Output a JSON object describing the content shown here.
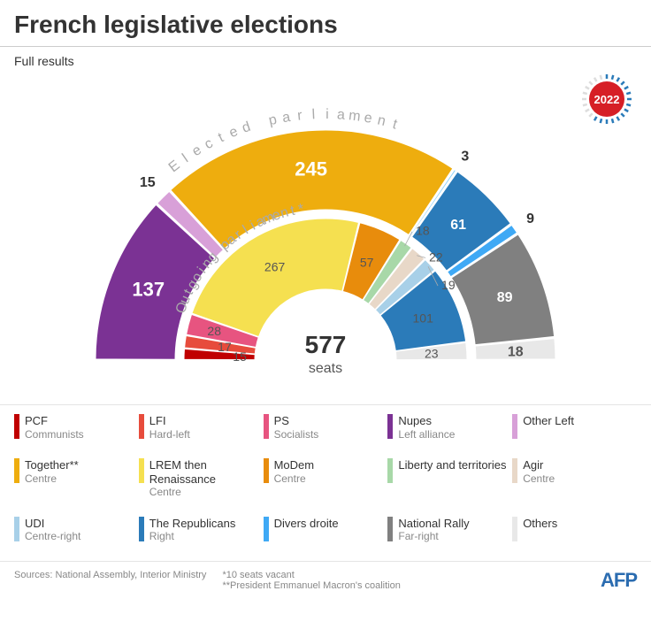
{
  "title": "French legislative elections",
  "subtitle": "Full results",
  "year_badge": {
    "year": "2022",
    "circle_color": "#d61f26",
    "tick_color": "#2b7bb9",
    "text_color": "#ffffff"
  },
  "chart": {
    "center_value": "577",
    "center_unit": "seats",
    "outer_title": "Elected parliament",
    "inner_title": "Outgoing parliament*",
    "outer_radius_outer": 260,
    "outer_radius_inner": 170,
    "inner_radius_outer": 160,
    "inner_radius_inner": 80,
    "gap_deg": 0.5,
    "outer": [
      {
        "name": "Nupes",
        "seats": 137,
        "color": "#7b3294",
        "label_r": 215
      },
      {
        "name": "Other Left",
        "seats": 15,
        "color": "#d8a0d8",
        "label_r": 285,
        "label_color": "#333333"
      },
      {
        "name": "Together",
        "seats": 245,
        "color": "#eead0e",
        "label_r": 215
      },
      {
        "name": "UDI",
        "seats": 3,
        "color": "#87cefa",
        "label_r": 280,
        "label_color": "#333333"
      },
      {
        "name": "The Republicans",
        "seats": 61,
        "color": "#2b7bb9",
        "label_r": 215
      },
      {
        "name": "Divers droite",
        "seats": 9,
        "color": "#3fa9f5",
        "label_r": 282,
        "label_color": "#333333"
      },
      {
        "name": "National Rally",
        "seats": 89,
        "color": "#808080",
        "label_r": 215
      },
      {
        "name": "Others",
        "seats": 18,
        "color": "#e8e8e8",
        "label_r": 215,
        "label_color": "#555555"
      }
    ],
    "inner": [
      {
        "name": "PCF",
        "seats": 15,
        "color": "#c00000",
        "label_r": 97,
        "label_color": "#555555"
      },
      {
        "name": "LFI",
        "seats": 17,
        "color": "#e74c3c",
        "label_r": 115,
        "label_color": "#555555"
      },
      {
        "name": "PS",
        "seats": 28,
        "color": "#e75480",
        "label_r": 130,
        "label_color": "#555555"
      },
      {
        "name": "LREM",
        "seats": 267,
        "color": "#f5e050",
        "label_r": 120,
        "label_color": "#555555"
      },
      {
        "name": "MoDem",
        "seats": 57,
        "color": "#e88c0c",
        "label_r": 120,
        "label_color": "#555555"
      },
      {
        "name": "Liberty",
        "seats": 18,
        "color": "#a8d8a8",
        "label_r": 172,
        "line": true,
        "label_color": "#555555"
      },
      {
        "name": "Agir",
        "seats": 22,
        "color": "#e8d8c8",
        "label_r": 172,
        "line": true,
        "label_color": "#555555"
      },
      {
        "name": "UDI",
        "seats": 19,
        "color": "#a8d0e8",
        "label_r": 172,
        "line": true,
        "label_color": "#555555"
      },
      {
        "name": "The Republicans",
        "seats": 101,
        "color": "#2b7bb9",
        "label_r": 120,
        "label_color": "#555555"
      },
      {
        "name": "Others",
        "seats": 23,
        "color": "#e8e8e8",
        "label_r": 120,
        "label_color": "#555555"
      }
    ]
  },
  "legend_rows": [
    [
      {
        "name": "PCF",
        "desc": "Communists",
        "color": "#c00000"
      },
      {
        "name": "LFI",
        "desc": "Hard-left",
        "color": "#e74c3c"
      },
      {
        "name": "PS",
        "desc": "Socialists",
        "color": "#e75480"
      },
      {
        "name": "Nupes",
        "desc": "Left alliance",
        "color": "#7b3294"
      },
      {
        "name": "Other Left",
        "desc": "",
        "color": "#d8a0d8"
      }
    ],
    [
      {
        "name": "Together**",
        "desc": "Centre",
        "color": "#eead0e"
      },
      {
        "name": "LREM then Renaissance",
        "desc": "Centre",
        "color": "#f5e050"
      },
      {
        "name": "MoDem",
        "desc": "Centre",
        "color": "#e88c0c"
      },
      {
        "name": "Liberty and territories",
        "desc": "",
        "color": "#a8d8a8"
      },
      {
        "name": "Agir",
        "desc": "Centre",
        "color": "#e8d8c8"
      }
    ],
    [
      {
        "name": "UDI",
        "desc": "Centre-right",
        "color": "#a8d0e8"
      },
      {
        "name": "The Republicans",
        "desc": "Right",
        "color": "#2b7bb9"
      },
      {
        "name": "Divers droite",
        "desc": "",
        "color": "#3fa9f5"
      },
      {
        "name": "National Rally",
        "desc": "Far-right",
        "color": "#808080"
      },
      {
        "name": "Others",
        "desc": "",
        "color": "#e8e8e8"
      }
    ]
  ],
  "footer": {
    "sources": "Sources: National Assembly, Interior Ministry",
    "note1": "*10 seats vacant",
    "note2": "**President Emmanuel Macron's coalition",
    "logo": "AFP"
  }
}
